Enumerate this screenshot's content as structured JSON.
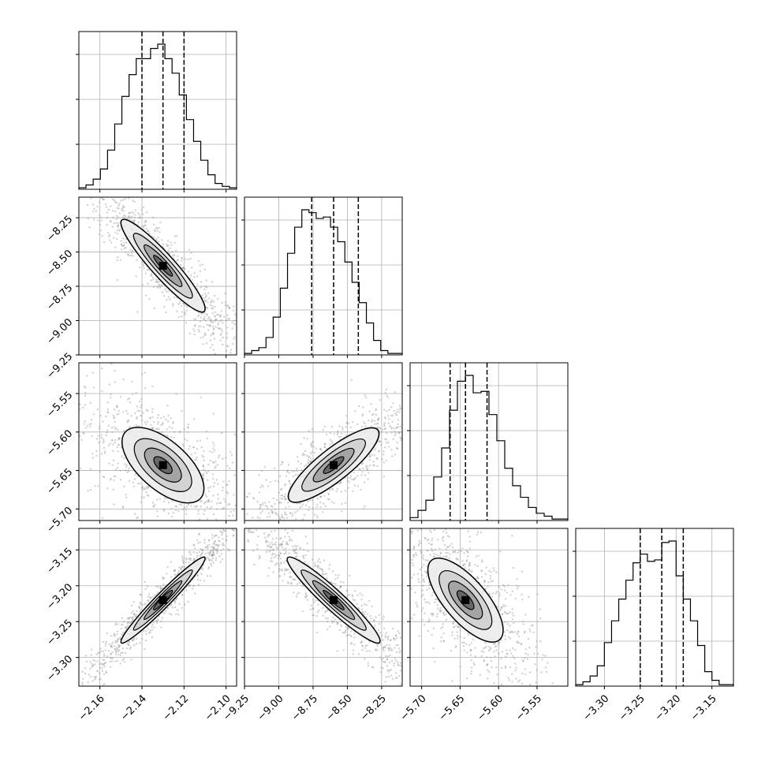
{
  "chart_data": {
    "type": "corner",
    "parameters": [
      {
        "ticks": [
          -2.16,
          -2.14,
          -2.12,
          -2.1
        ],
        "tick_labels": [
          "−2.16",
          "−2.14",
          "−2.12",
          "−2.10"
        ],
        "range": [
          -2.17,
          -2.095
        ],
        "quantiles": [
          -2.14,
          -2.13,
          -2.12
        ]
      },
      {
        "ticks": [
          -9.25,
          -9.0,
          -8.75,
          -8.5,
          -8.25
        ],
        "tick_labels": [
          "−9.25",
          "−9.00",
          "−8.75",
          "−8.50",
          "−8.25"
        ],
        "range": [
          -9.25,
          -8.1
        ],
        "quantiles": [
          -8.76,
          -8.6,
          -8.42
        ]
      },
      {
        "ticks": [
          -5.7,
          -5.65,
          -5.6,
          -5.55
        ],
        "tick_labels": [
          "−5.70",
          "−5.65",
          "−5.60",
          "−5.55"
        ],
        "range": [
          -5.715,
          -5.51
        ],
        "quantiles": [
          -5.663,
          -5.643,
          -5.615
        ]
      },
      {
        "ticks": [
          -3.3,
          -3.25,
          -3.2,
          -3.15
        ],
        "tick_labels": [
          "−3.30",
          "−3.25",
          "−3.20",
          "−3.15"
        ],
        "range": [
          -3.34,
          -3.12
        ],
        "quantiles": [
          -3.25,
          -3.22,
          -3.19
        ]
      }
    ],
    "histograms": [
      [
        0.01,
        0.03,
        0.07,
        0.14,
        0.27,
        0.45,
        0.64,
        0.79,
        0.9,
        0.9,
        0.97,
        1.0,
        0.9,
        0.8,
        0.65,
        0.48,
        0.33,
        0.2,
        0.1,
        0.04,
        0.02,
        0.01
      ],
      [
        0.01,
        0.03,
        0.05,
        0.12,
        0.26,
        0.46,
        0.7,
        0.88,
        1.0,
        0.98,
        0.94,
        0.95,
        0.88,
        0.78,
        0.64,
        0.5,
        0.36,
        0.22,
        0.1,
        0.03,
        0.01,
        0.01
      ],
      [
        0.02,
        0.07,
        0.14,
        0.3,
        0.5,
        0.76,
        0.96,
        1.0,
        0.88,
        0.89,
        0.73,
        0.55,
        0.36,
        0.24,
        0.16,
        0.09,
        0.05,
        0.03,
        0.01,
        0.01
      ],
      [
        0.01,
        0.03,
        0.07,
        0.14,
        0.3,
        0.45,
        0.6,
        0.73,
        0.85,
        0.91,
        0.86,
        0.87,
        0.99,
        1.0,
        0.76,
        0.6,
        0.45,
        0.28,
        0.1,
        0.04,
        0.01,
        0.01
      ]
    ],
    "grid": true
  }
}
